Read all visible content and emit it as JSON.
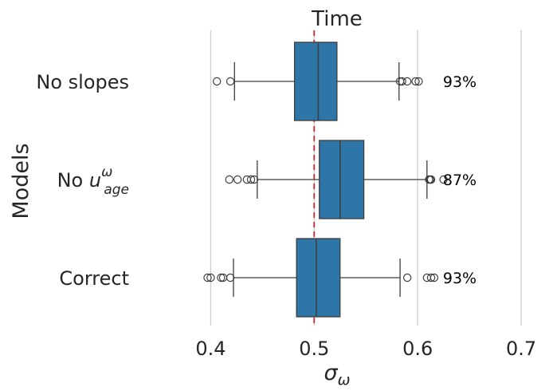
{
  "chart_data": {
    "type": "box",
    "orientation": "horizontal",
    "title": "Time",
    "xlabel": {
      "symbol": "σ",
      "subscript": "ω"
    },
    "ylabel": "Models",
    "xlim": [
      0.335,
      0.72
    ],
    "xticks": [
      0.4,
      0.5,
      0.6,
      0.7
    ],
    "xtick_labels": [
      "0.4",
      "0.5",
      "0.6",
      "0.7"
    ],
    "reference_line": {
      "x": 0.5,
      "style": "dashed",
      "color": "#d62728"
    },
    "grid": "vertical",
    "box_color": "#2e75a8",
    "categories": [
      {
        "label": "No slopes",
        "label_rich": [
          {
            "text": "No slopes"
          }
        ],
        "whisker_low": 0.423,
        "q1": 0.481,
        "median": 0.504,
        "q3": 0.522,
        "whisker_high": 0.582,
        "outliers": [
          0.406,
          0.419,
          0.583,
          0.585,
          0.59,
          0.598,
          0.601
        ],
        "annotation": "93%"
      },
      {
        "label": "No u_age^ω",
        "label_rich": [
          {
            "text": "No "
          },
          {
            "text": "u",
            "italic": true
          },
          {
            "text": "ω",
            "sup": true,
            "italic": true
          },
          {
            "text": "age",
            "sub": true,
            "italic": true
          }
        ],
        "whisker_low": 0.445,
        "q1": 0.505,
        "median": 0.525,
        "q3": 0.548,
        "whisker_high": 0.609,
        "outliers": [
          0.418,
          0.426,
          0.435,
          0.439,
          0.442,
          0.611,
          0.612,
          0.613,
          0.625
        ],
        "annotation": "87%"
      },
      {
        "label": "Correct",
        "label_rich": [
          {
            "text": "Correct"
          }
        ],
        "whisker_low": 0.422,
        "q1": 0.483,
        "median": 0.502,
        "q3": 0.525,
        "whisker_high": 0.583,
        "outliers": [
          0.397,
          0.4,
          0.41,
          0.412,
          0.419,
          0.59,
          0.609,
          0.613,
          0.616
        ],
        "annotation": "93%"
      }
    ]
  }
}
